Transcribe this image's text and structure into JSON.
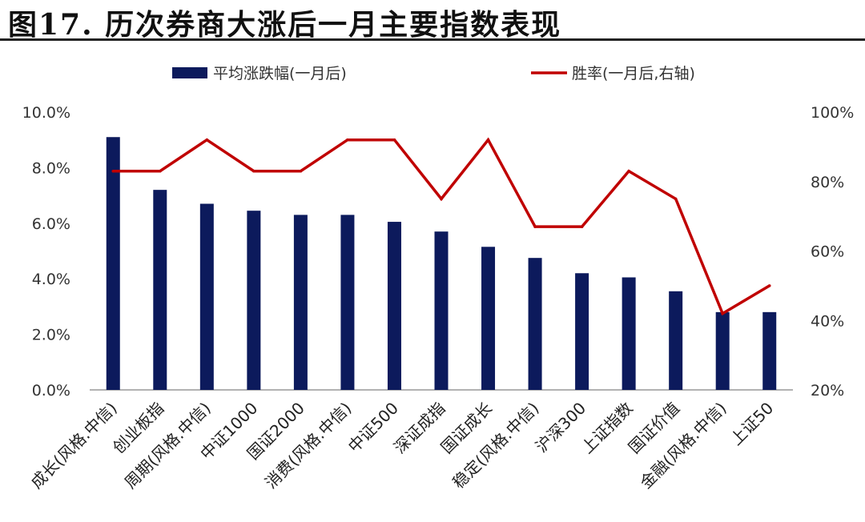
{
  "figure": {
    "title": "图17. 历次券商大涨后一月主要指数表现"
  },
  "colors": {
    "bar": "#0c1a5c",
    "line": "#c00000",
    "axis": "#999999"
  },
  "chart_data": {
    "type": "bar",
    "title": "",
    "xlabel": "",
    "ylabel": "",
    "categories": [
      "成长(风格.中信)",
      "创业板指",
      "周期(风格.中信)",
      "中证1000",
      "国证2000",
      "消费(风格.中信)",
      "中证500",
      "深证成指",
      "国证成长",
      "稳定(风格.中信)",
      "沪深300",
      "上证指数",
      "国证价值",
      "金融(风格.中信)",
      "上证50"
    ],
    "series": [
      {
        "name": "平均涨跌幅(一月后)",
        "type": "bar",
        "axis": "left",
        "values": [
          9.1,
          7.2,
          6.7,
          6.45,
          6.3,
          6.3,
          6.05,
          5.7,
          5.15,
          4.75,
          4.2,
          4.05,
          3.55,
          2.8,
          2.8
        ]
      },
      {
        "name": "胜率(一月后,右轴)",
        "type": "line",
        "axis": "right",
        "values": [
          83,
          83,
          92,
          83,
          83,
          92,
          92,
          75,
          92,
          67,
          67,
          83,
          75,
          42,
          50
        ]
      }
    ],
    "ylim": [
      0,
      10
    ],
    "y2lim": [
      20,
      100
    ],
    "yticks": [
      "0.0%",
      "2.0%",
      "4.0%",
      "6.0%",
      "8.0%",
      "10.0%"
    ],
    "y2ticks": [
      "20%",
      "40%",
      "60%",
      "80%",
      "100%"
    ],
    "legend": "top",
    "grid": false
  }
}
